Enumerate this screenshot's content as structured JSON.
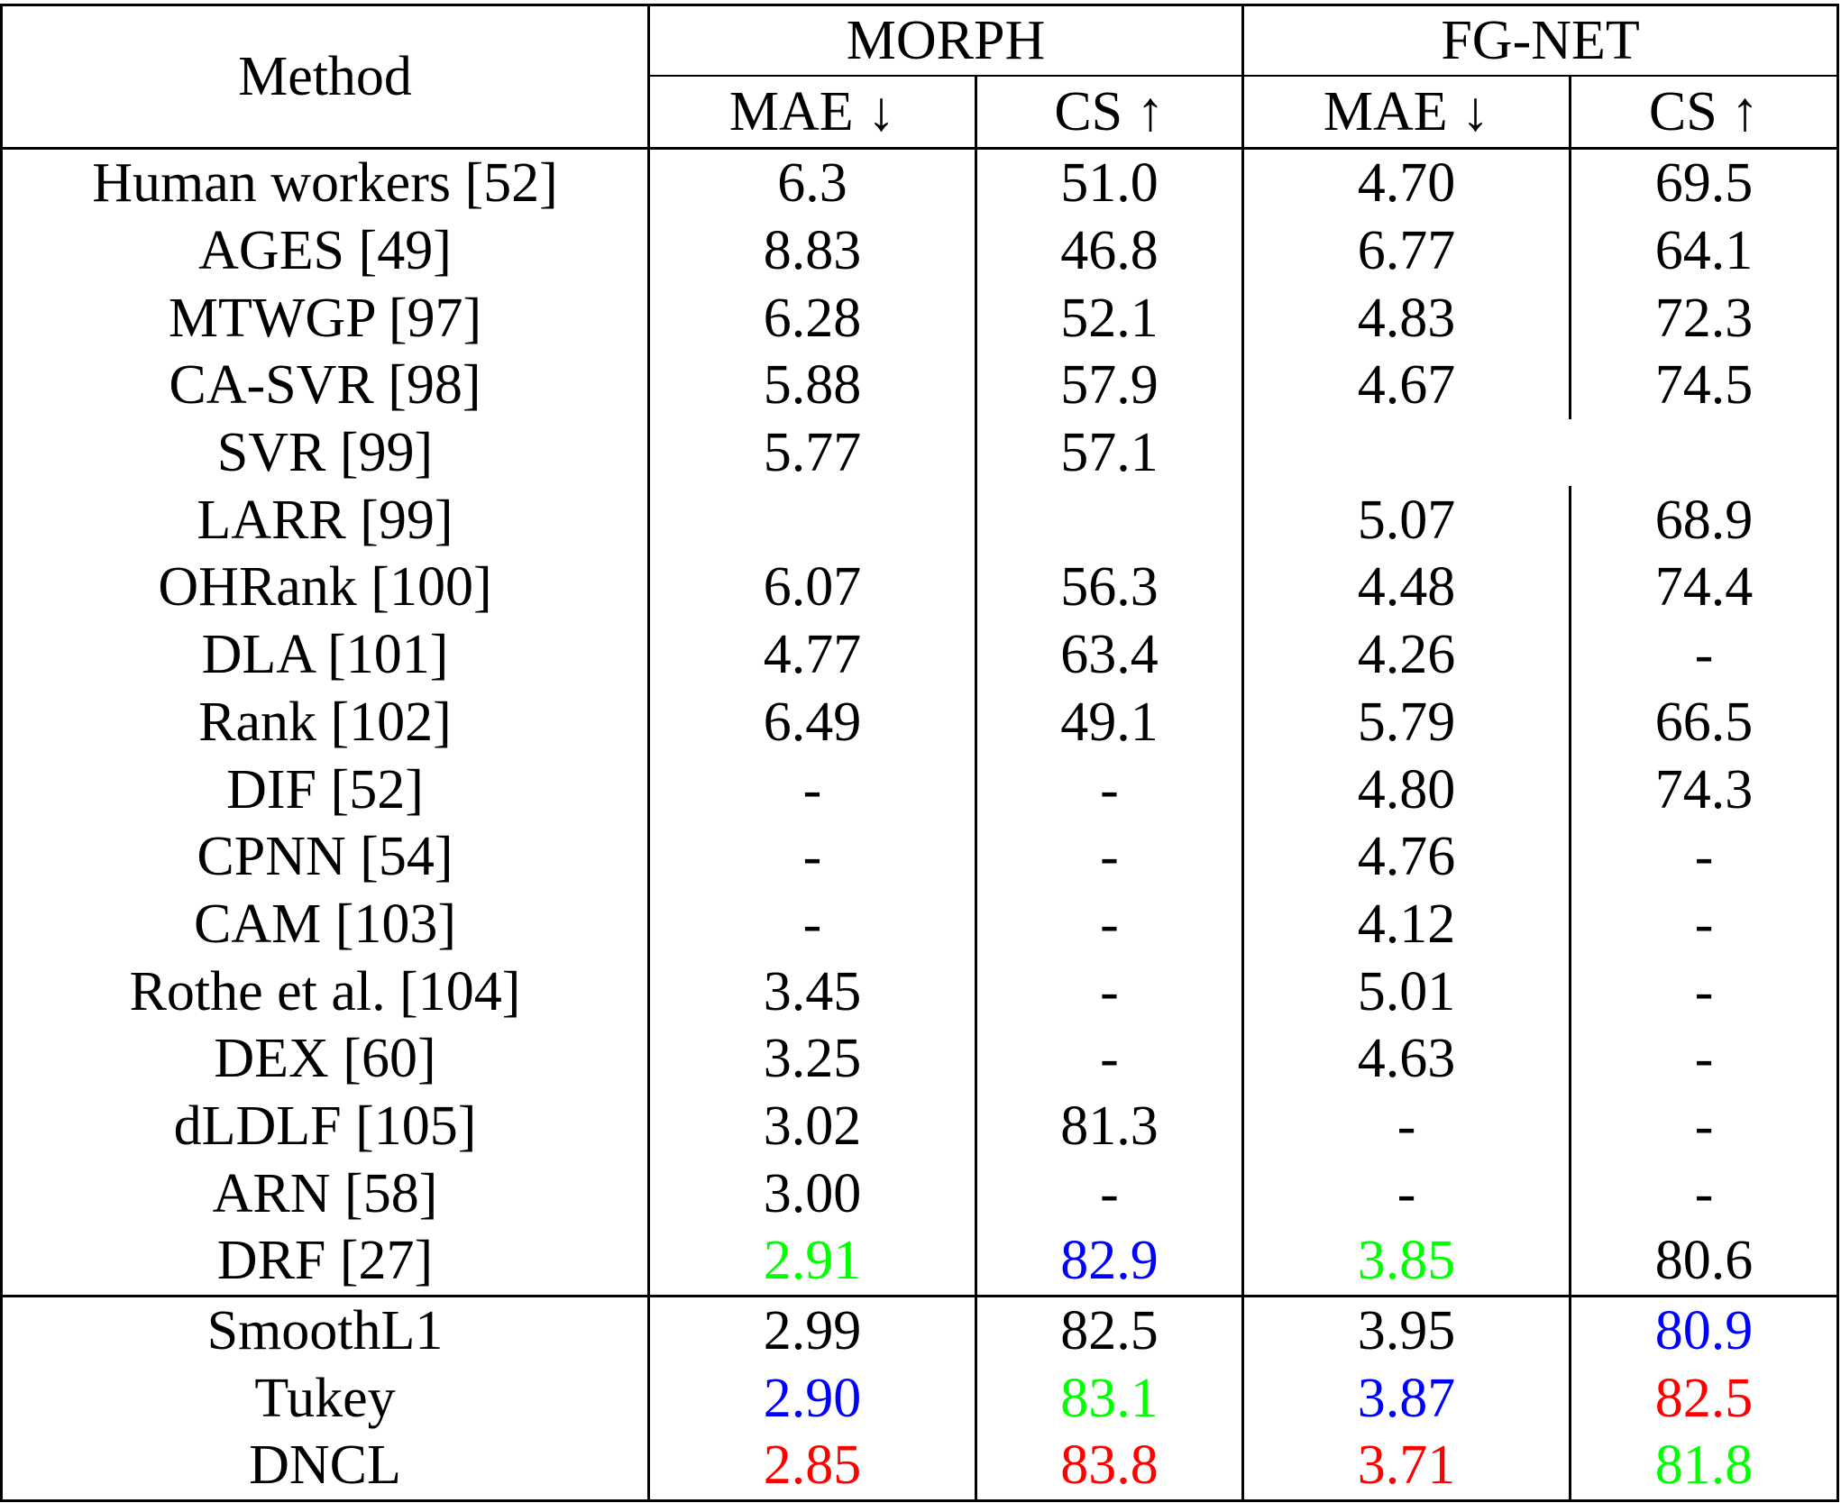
{
  "header": {
    "method": "Method",
    "groups": [
      "MORPH",
      "FG-NET"
    ],
    "metrics": [
      "MAE ↓",
      "CS ↑",
      "MAE ↓",
      "CS ↑"
    ]
  },
  "rows": [
    {
      "method": "Human workers [52]",
      "cells": [
        "6.3",
        "51.0",
        "4.70",
        "69.5"
      ]
    },
    {
      "method": "AGES [49]",
      "cells": [
        "8.83",
        "46.8",
        "6.77",
        "64.1"
      ]
    },
    {
      "method": "MTWGP [97]",
      "cells": [
        "6.28",
        "52.1",
        "4.83",
        "72.3"
      ]
    },
    {
      "method": "CA-SVR [98]",
      "cells": [
        "5.88",
        "57.9",
        "4.67",
        "74.5"
      ]
    },
    {
      "method": "SVR [99]",
      "cells": [
        "5.77",
        "57.1",
        "",
        ""
      ]
    },
    {
      "method": "LARR [99]",
      "cells": [
        "",
        "",
        "5.07",
        "68.9"
      ]
    },
    {
      "method": "OHRank [100]",
      "cells": [
        "6.07",
        "56.3",
        "4.48",
        "74.4"
      ]
    },
    {
      "method": "DLA [101]",
      "cells": [
        "4.77",
        "63.4",
        "4.26",
        "-"
      ]
    },
    {
      "method": "Rank [102]",
      "cells": [
        "6.49",
        "49.1",
        "5.79",
        "66.5"
      ]
    },
    {
      "method": "DIF [52]",
      "cells": [
        "-",
        "-",
        "4.80",
        "74.3"
      ]
    },
    {
      "method": "CPNN [54]",
      "cells": [
        "-",
        "-",
        "4.76",
        "-"
      ]
    },
    {
      "method": "CAM [103]",
      "cells": [
        "-",
        "-",
        "4.12",
        "-"
      ]
    },
    {
      "method": "Rothe et al. [104]",
      "cells": [
        "3.45",
        "-",
        "5.01",
        "-"
      ]
    },
    {
      "method": "DEX [60]",
      "cells": [
        "3.25",
        "-",
        "4.63",
        "-"
      ]
    },
    {
      "method": "dLDLF [105]",
      "cells": [
        "3.02",
        "81.3",
        "-",
        "-"
      ]
    },
    {
      "method": "ARN [58]",
      "cells": [
        "3.00",
        "-",
        "-",
        "-"
      ]
    },
    {
      "method": "DRF  [27]",
      "cells": [
        "2.91",
        "82.9",
        "3.85",
        "80.6"
      ]
    },
    {
      "method": "SmoothL1",
      "cells": [
        "2.99",
        "82.5",
        "3.95",
        "80.9"
      ]
    },
    {
      "method": "Tukey",
      "cells": [
        "2.90",
        "83.1",
        "3.87",
        "82.5"
      ]
    },
    {
      "method": "DNCL",
      "cells": [
        "2.85",
        "83.8",
        "3.71",
        "81.8"
      ]
    }
  ],
  "highlight_colors": {
    "best": "#ff0000",
    "second": "#0000ff",
    "third": "#00ff00"
  }
}
